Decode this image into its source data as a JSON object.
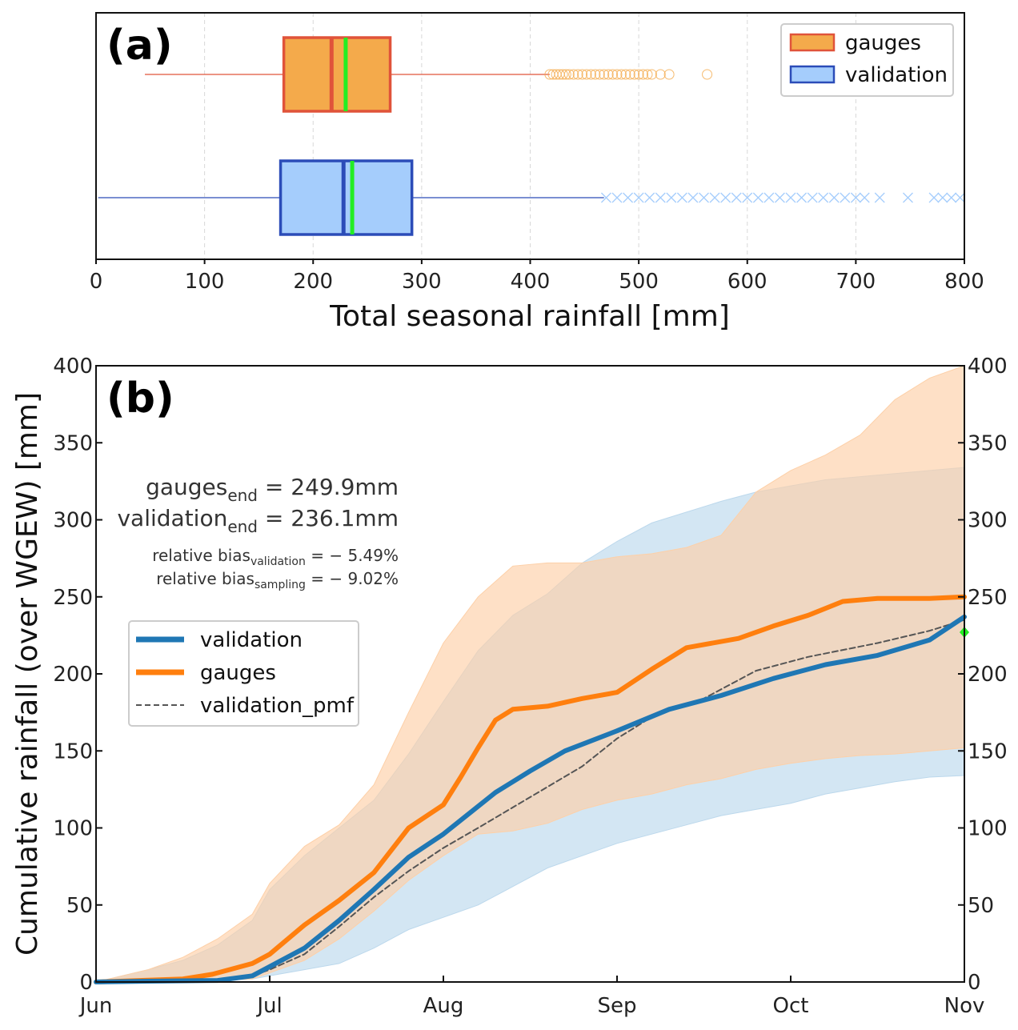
{
  "chart_data": [
    {
      "panel_label": "(a)",
      "type": "boxplot",
      "orientation": "horizontal",
      "xlabel": "Total seasonal rainfall  [mm]",
      "xlim": [
        0,
        800
      ],
      "xticks": [
        "0",
        "100",
        "200",
        "300",
        "400",
        "500",
        "600",
        "700",
        "800"
      ],
      "grid": "vertical dashed",
      "legend_position": "top-right",
      "series": [
        {
          "name": "gauges",
          "fill": "#f4aa4b",
          "edge": "#e0533a",
          "whisker_low": 45,
          "q1": 173,
          "median": 217,
          "mean": 230,
          "q3": 271,
          "whisker_high": 418,
          "outlier_marker": "circle",
          "outliers": [
            418,
            421,
            424,
            427,
            430,
            433,
            436,
            440,
            444,
            448,
            452,
            456,
            460,
            464,
            468,
            472,
            476,
            480,
            484,
            488,
            492,
            496,
            500,
            504,
            508,
            512,
            520,
            528,
            563
          ]
        },
        {
          "name": "validation",
          "fill": "#a5cdfc",
          "edge": "#2b4cb8",
          "whisker_low": 2,
          "q1": 170,
          "median": 228,
          "mean": 236,
          "q3": 291,
          "whisker_high": 468,
          "outlier_marker": "x",
          "outliers": [
            470,
            480,
            490,
            500,
            510,
            520,
            530,
            540,
            550,
            560,
            570,
            580,
            590,
            600,
            610,
            620,
            630,
            640,
            650,
            660,
            670,
            680,
            690,
            700,
            708,
            722,
            748,
            772,
            780,
            788,
            796
          ]
        }
      ],
      "mean_color": "#22ee22"
    },
    {
      "panel_label": "(b)",
      "type": "line",
      "ylabel": "Cumulative rainfall (over WGEW) [mm]",
      "ylim": [
        0,
        400
      ],
      "yticks": [
        "0",
        "50",
        "100",
        "150",
        "200",
        "250",
        "300",
        "350",
        "400"
      ],
      "xticks": [
        "Jun",
        "Jul",
        "Aug",
        "Sep",
        "Oct",
        "Nov"
      ],
      "x_unit": "months since Jun 1",
      "legend_position": "center-left",
      "annotations": [
        {
          "base": "gauges",
          "sub": "end",
          "rest": " = 249.9mm"
        },
        {
          "base": "validation",
          "sub": "end",
          "rest": " = 236.1mm"
        },
        {
          "base": "relative bias",
          "sub": "validation",
          "rest": " = − 5.49%"
        },
        {
          "base": "relative bias",
          "sub": "sampling",
          "rest": " = − 9.02%"
        }
      ],
      "series": [
        {
          "name": "validation",
          "color": "#1f77b4",
          "style": "solid",
          "x": [
            0,
            0.3,
            0.7,
            0.9,
            1.0,
            1.2,
            1.4,
            1.6,
            1.8,
            2.0,
            2.3,
            2.5,
            2.7,
            3.0,
            3.3,
            3.6,
            3.9,
            4.2,
            4.5,
            4.8,
            5.0
          ],
          "y": [
            0,
            0.5,
            1,
            4,
            10,
            22,
            40,
            60,
            81,
            96,
            123,
            137,
            150,
            163,
            177,
            186,
            197,
            206,
            212,
            222,
            237
          ]
        },
        {
          "name": "gauges",
          "color": "#ff7f0e",
          "style": "solid",
          "x": [
            0,
            0.5,
            0.67,
            0.9,
            1.0,
            1.2,
            1.4,
            1.6,
            1.8,
            2.0,
            2.1,
            2.2,
            2.3,
            2.4,
            2.6,
            2.8,
            3.0,
            3.2,
            3.4,
            3.7,
            3.9,
            4.1,
            4.3,
            4.5,
            4.8,
            5.0
          ],
          "y": [
            0,
            2,
            5,
            12,
            18,
            37,
            53,
            71,
            100,
            115,
            133,
            152,
            170,
            177,
            179,
            184,
            188,
            203,
            217,
            223,
            231,
            238,
            247,
            249,
            249,
            250
          ]
        },
        {
          "name": "validation_pmf",
          "color": "#555555",
          "style": "dashed",
          "x": [
            0,
            0.3,
            0.7,
            0.9,
            1.0,
            1.2,
            1.4,
            1.6,
            1.8,
            2.0,
            2.2,
            2.5,
            2.8,
            3.0,
            3.2,
            3.5,
            3.8,
            4.1,
            4.5,
            4.8,
            5.0
          ],
          "y": [
            0,
            0.5,
            1,
            4,
            8,
            18,
            36,
            55,
            72,
            87,
            100,
            120,
            140,
            158,
            172,
            184,
            202,
            211,
            220,
            228,
            235
          ]
        }
      ],
      "bands": [
        {
          "name": "gauges range",
          "color": "#fdd0a8",
          "x": [
            0,
            0.3,
            0.5,
            0.7,
            0.9,
            1.0,
            1.2,
            1.4,
            1.6,
            1.8,
            2.0,
            2.2,
            2.4,
            2.6,
            2.8,
            3.0,
            3.2,
            3.4,
            3.6,
            3.8,
            4.0,
            4.2,
            4.4,
            4.6,
            4.8,
            5.0
          ],
          "upper": [
            0,
            8,
            16,
            28,
            44,
            64,
            88,
            102,
            128,
            175,
            220,
            250,
            270,
            272,
            272,
            276,
            278,
            282,
            290,
            318,
            332,
            342,
            355,
            378,
            392,
            400
          ],
          "lower": [
            0,
            0,
            0,
            1,
            2,
            6,
            14,
            28,
            46,
            66,
            82,
            96,
            98,
            103,
            112,
            118,
            122,
            128,
            132,
            138,
            142,
            145,
            147,
            148,
            150,
            152
          ]
        },
        {
          "name": "validation range",
          "color": "#bcd8ec",
          "x": [
            0,
            0.3,
            0.5,
            0.7,
            0.9,
            1.0,
            1.2,
            1.4,
            1.6,
            1.8,
            2.0,
            2.2,
            2.4,
            2.6,
            2.8,
            3.0,
            3.2,
            3.4,
            3.6,
            3.8,
            4.0,
            4.2,
            4.4,
            4.6,
            4.8,
            5.0
          ],
          "upper": [
            0,
            8,
            14,
            24,
            40,
            60,
            82,
            100,
            118,
            148,
            182,
            215,
            238,
            252,
            272,
            286,
            298,
            305,
            312,
            318,
            322,
            326,
            328,
            330,
            332,
            334
          ],
          "lower": [
            0,
            0,
            0,
            1,
            2,
            4,
            8,
            12,
            22,
            34,
            42,
            50,
            62,
            74,
            82,
            90,
            96,
            102,
            108,
            112,
            116,
            122,
            126,
            130,
            133,
            134
          ]
        }
      ],
      "end_marker": {
        "x": 5.0,
        "y": 227,
        "color": "#22ee22"
      }
    }
  ]
}
